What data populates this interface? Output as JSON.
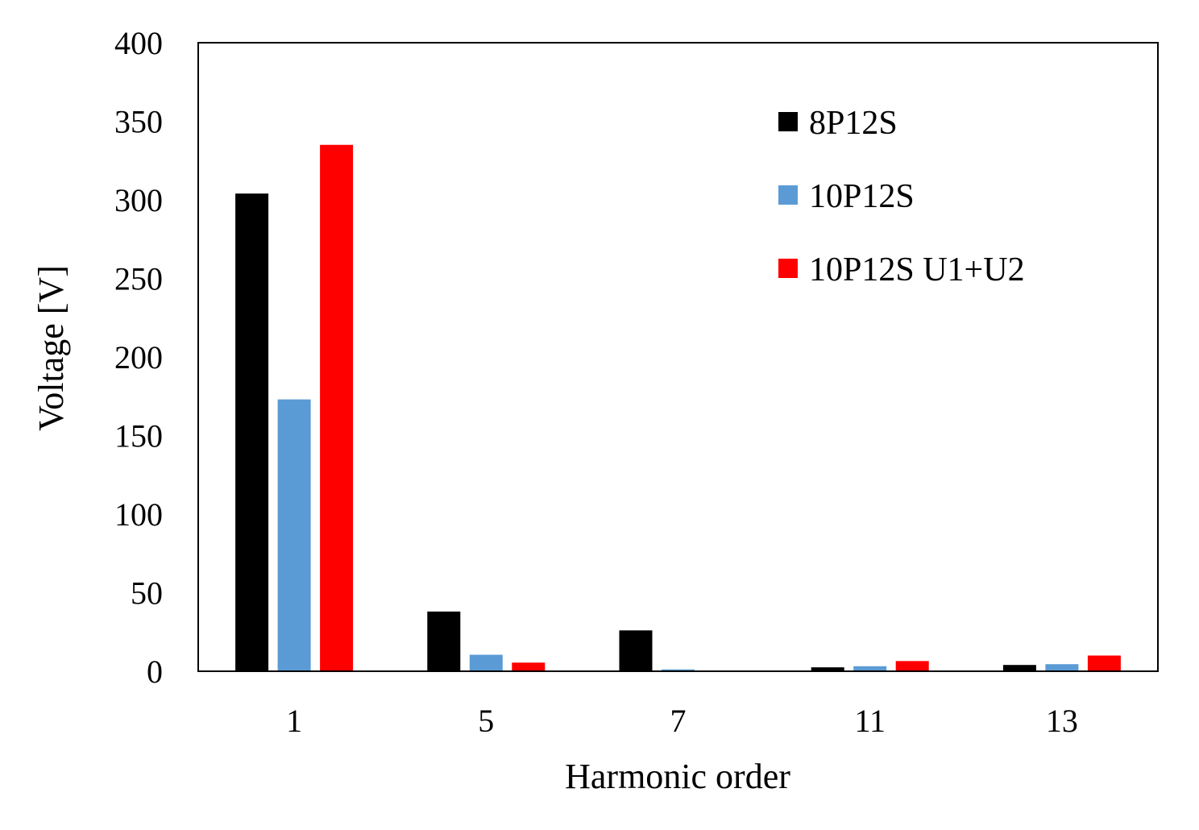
{
  "chart_data": {
    "type": "bar",
    "title": "",
    "xlabel": "Harmonic order",
    "ylabel": "Voltage [V]",
    "categories": [
      "1",
      "5",
      "7",
      "11",
      "13"
    ],
    "ylim": [
      0,
      400
    ],
    "yticks": [
      0,
      50,
      100,
      150,
      200,
      250,
      300,
      350,
      400
    ],
    "grid": false,
    "legend_position": "top-right",
    "series": [
      {
        "name": "8P12S",
        "color": "#000000",
        "values": [
          304,
          38,
          26,
          2.5,
          4
        ]
      },
      {
        "name": "10P12S",
        "color": "#5b9bd5",
        "values": [
          173,
          10.5,
          1.2,
          3.2,
          4.5
        ]
      },
      {
        "name": "10P12S U1+U2",
        "color": "#ff0000",
        "values": [
          335,
          5.5,
          0.5,
          6.5,
          10
        ]
      }
    ]
  }
}
